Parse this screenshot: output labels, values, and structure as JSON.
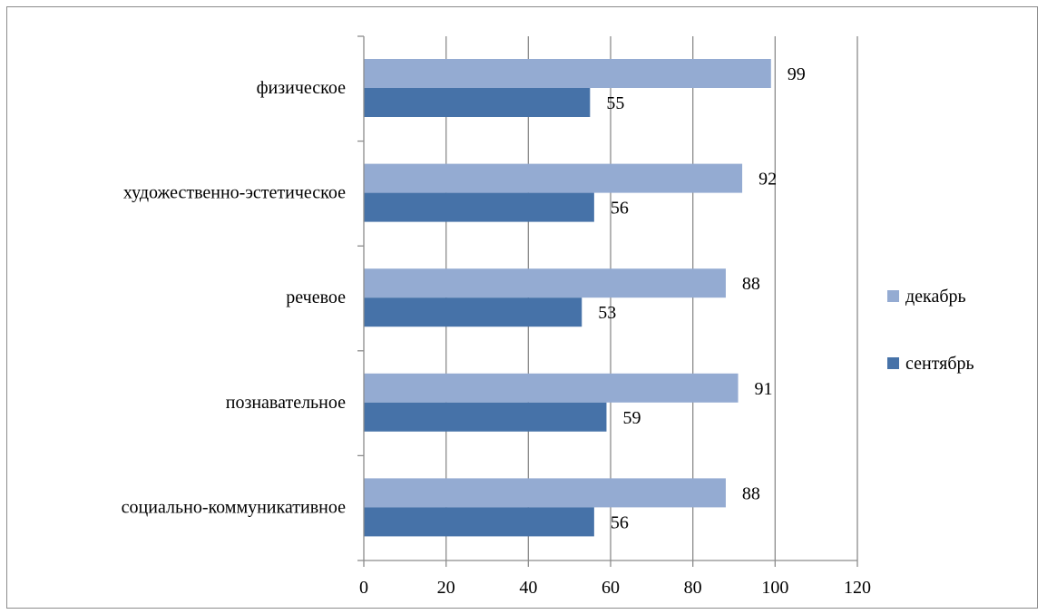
{
  "chart_data": {
    "type": "bar",
    "orientation": "horizontal",
    "title": "",
    "xlabel": "",
    "ylabel": "",
    "categories": [
      "физическое",
      "художественно-эстетическое",
      "речевое",
      "познавательное",
      "социально-коммуникативное"
    ],
    "series": [
      {
        "name": "декабрь",
        "color": "#94abd2",
        "values": [
          99,
          92,
          88,
          91,
          88
        ]
      },
      {
        "name": "сентябрь",
        "color": "#4672a8",
        "values": [
          55,
          56,
          53,
          59,
          56
        ]
      }
    ],
    "xlim": [
      0,
      120
    ],
    "x_ticks": [
      0,
      20,
      40,
      60,
      80,
      100,
      120
    ],
    "x_tick_labels": [
      "0",
      "20",
      "40",
      "60",
      "80",
      "100",
      "120"
    ],
    "grid": "vertical",
    "legend_position": "right",
    "data_labels": true
  }
}
